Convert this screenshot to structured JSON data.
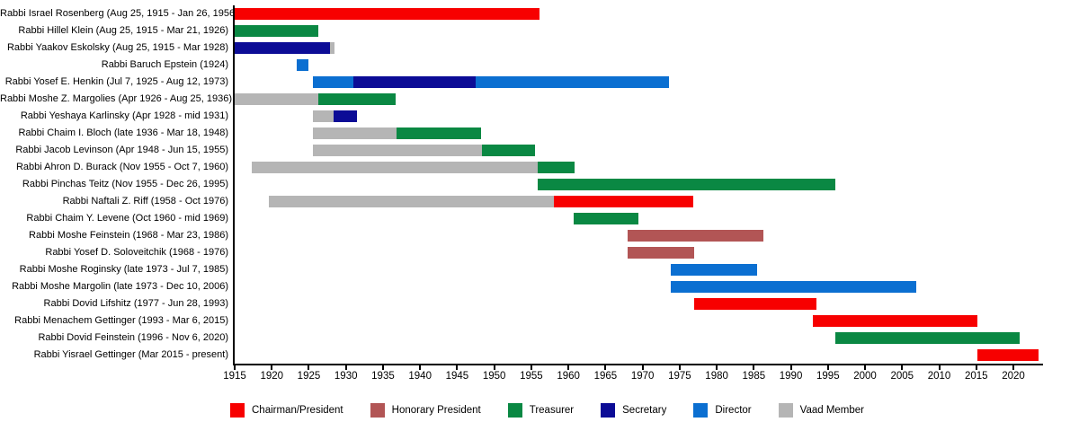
{
  "page": {
    "background": "#ffffff"
  },
  "chart_data": {
    "type": "bar",
    "subtype": "horizontal-timeline-gantt",
    "title": "",
    "xlabel": "",
    "ylabel": "",
    "grid": false,
    "x_axis": {
      "min": 1915,
      "max": 2024,
      "ticks": [
        1915,
        1920,
        1925,
        1930,
        1935,
        1940,
        1945,
        1950,
        1955,
        1960,
        1965,
        1970,
        1975,
        1980,
        1985,
        1990,
        1995,
        2000,
        2005,
        2010,
        2015,
        2020
      ]
    },
    "legend": {
      "position": "bottom",
      "items": [
        {
          "role": "chairman",
          "label": "Chairman/President",
          "color": "#f70000"
        },
        {
          "role": "honorary",
          "label": "Honorary President",
          "color": "#b25555"
        },
        {
          "role": "treasurer",
          "label": "Treasurer",
          "color": "#0a8843"
        },
        {
          "role": "secretary",
          "label": "Secretary",
          "color": "#0c0c96"
        },
        {
          "role": "director",
          "label": "Director",
          "color": "#0b6fd1"
        },
        {
          "role": "vaad",
          "label": "Vaad Member",
          "color": "#b5b5b5"
        }
      ]
    },
    "rows": [
      {
        "label": "Rabbi Israel Rosenberg (Aug 25, 1915 - Jan 26, 1956)",
        "segments": [
          {
            "role": "chairman",
            "start": 1915.0,
            "end": 1956.1
          }
        ]
      },
      {
        "label": "Rabbi Hillel Klein (Aug 25, 1915 - Mar 21, 1926)",
        "segments": [
          {
            "role": "treasurer",
            "start": 1915.0,
            "end": 1926.25
          }
        ]
      },
      {
        "label": "Rabbi Yaakov Eskolsky (Aug 25, 1915 - Mar 1928)",
        "segments": [
          {
            "role": "secretary",
            "start": 1915.0,
            "end": 1927.9
          },
          {
            "role": "vaad",
            "start": 1927.9,
            "end": 1928.5
          }
        ]
      },
      {
        "label": "Rabbi Baruch Epstein (1924)",
        "segments": [
          {
            "role": "director",
            "start": 1923.4,
            "end": 1924.9
          }
        ]
      },
      {
        "label": "Rabbi Yosef E. Henkin (Jul 7, 1925 - Aug 12, 1973)",
        "segments": [
          {
            "role": "director",
            "start": 1925.5,
            "end": 1931.0
          },
          {
            "role": "secretary",
            "start": 1931.0,
            "end": 1947.5
          },
          {
            "role": "director",
            "start": 1947.5,
            "end": 1973.6
          }
        ]
      },
      {
        "label": "Rabbi Moshe Z. Margolies (Apr 1926 - Aug 25, 1936)",
        "segments": [
          {
            "role": "vaad",
            "start": 1915.0,
            "end": 1926.3
          },
          {
            "role": "treasurer",
            "start": 1926.3,
            "end": 1936.65
          }
        ]
      },
      {
        "label": "Rabbi Yeshaya Karlinsky (Apr 1928 - mid 1931)",
        "segments": [
          {
            "role": "vaad",
            "start": 1925.5,
            "end": 1928.3
          },
          {
            "role": "secretary",
            "start": 1928.3,
            "end": 1931.5
          }
        ]
      },
      {
        "label": "Rabbi Chaim I. Bloch (late 1936 - Mar 18, 1948)",
        "segments": [
          {
            "role": "vaad",
            "start": 1925.5,
            "end": 1936.8
          },
          {
            "role": "treasurer",
            "start": 1936.8,
            "end": 1948.2
          }
        ]
      },
      {
        "label": "Rabbi Jacob Levinson (Apr 1948 - Jun 15, 1955)",
        "segments": [
          {
            "role": "vaad",
            "start": 1925.5,
            "end": 1948.3
          },
          {
            "role": "treasurer",
            "start": 1948.3,
            "end": 1955.45
          }
        ]
      },
      {
        "label": "Rabbi Ahron D. Burack (Nov 1955 - Oct 7, 1960)",
        "segments": [
          {
            "role": "vaad",
            "start": 1917.3,
            "end": 1955.8
          },
          {
            "role": "treasurer",
            "start": 1955.8,
            "end": 1960.8
          }
        ]
      },
      {
        "label": "Rabbi Pinchas Teitz (Nov 1955 - Dec 26, 1995)",
        "segments": [
          {
            "role": "treasurer",
            "start": 1955.8,
            "end": 1996.0
          }
        ]
      },
      {
        "label": "Rabbi Naftali Z. Riff (1958 - Oct 1976)",
        "segments": [
          {
            "role": "vaad",
            "start": 1919.6,
            "end": 1958.0
          },
          {
            "role": "chairman",
            "start": 1958.0,
            "end": 1976.8
          }
        ]
      },
      {
        "label": "Rabbi Chaim Y. Levene (Oct 1960 - mid 1969)",
        "segments": [
          {
            "role": "treasurer",
            "start": 1960.75,
            "end": 1969.5
          }
        ]
      },
      {
        "label": "Rabbi Moshe Feinstein (1968 - Mar 23, 1986)",
        "segments": [
          {
            "role": "honorary",
            "start": 1968.0,
            "end": 1986.25
          }
        ]
      },
      {
        "label": "Rabbi Yosef D. Soloveitchik (1968 - 1976)",
        "segments": [
          {
            "role": "honorary",
            "start": 1968.0,
            "end": 1977.0
          }
        ]
      },
      {
        "label": "Rabbi Moshe Roginsky (late 1973 - Jul 7, 1985)",
        "segments": [
          {
            "role": "director",
            "start": 1973.75,
            "end": 1985.5
          }
        ]
      },
      {
        "label": "Rabbi Moshe Margolin (late 1973 - Dec 10, 2006)",
        "segments": [
          {
            "role": "director",
            "start": 1973.75,
            "end": 2006.95
          }
        ]
      },
      {
        "label": "Rabbi Dovid Lifshitz (1977 - Jun 28, 1993)",
        "segments": [
          {
            "role": "chairman",
            "start": 1977.0,
            "end": 1993.5
          }
        ]
      },
      {
        "label": "Rabbi Menachem Gettinger (1993 - Mar 6, 2015)",
        "segments": [
          {
            "role": "chairman",
            "start": 1993.0,
            "end": 2015.2
          }
        ]
      },
      {
        "label": "Rabbi Dovid Feinstein (1996 - Nov 6, 2020)",
        "segments": [
          {
            "role": "treasurer",
            "start": 1996.0,
            "end": 2020.9
          }
        ]
      },
      {
        "label": "Rabbi Yisrael Gettinger (Mar 2015 - present)",
        "segments": [
          {
            "role": "chairman",
            "start": 2015.2,
            "end": 2023.4
          }
        ]
      }
    ]
  }
}
